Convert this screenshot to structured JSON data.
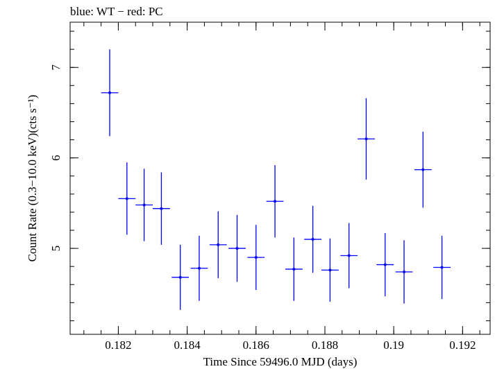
{
  "chart_data": {
    "type": "scatter",
    "title": "blue: WT − red: PC",
    "xlabel": "Time Since 59496.0 MJD (days)",
    "ylabel": "Count Rate (0.3−10.0 keV)(cts s⁻¹)",
    "xlim": [
      0.1806,
      0.1928
    ],
    "ylim": [
      4.05,
      7.5
    ],
    "x_ticks": [
      0.182,
      0.184,
      0.186,
      0.188,
      0.19,
      0.192
    ],
    "x_tick_labels": [
      "0.182",
      "0.184",
      "0.186",
      "0.188",
      "0.19",
      "0.192"
    ],
    "x_minor_step": 0.0005,
    "y_ticks": [
      5,
      6,
      7
    ],
    "y_tick_labels": [
      "5",
      "6",
      "7"
    ],
    "y_minor_step": 0.2,
    "grid": false,
    "series": [
      {
        "color": "#0000ff",
        "points": [
          {
            "x": 0.18175,
            "xerr": 0.00025,
            "y": 6.72,
            "yerr": 0.48
          },
          {
            "x": 0.18225,
            "xerr": 0.00025,
            "y": 5.55,
            "yerr": 0.4
          },
          {
            "x": 0.18275,
            "xerr": 0.00025,
            "y": 5.48,
            "yerr": 0.4
          },
          {
            "x": 0.18325,
            "xerr": 0.00025,
            "y": 5.44,
            "yerr": 0.4
          },
          {
            "x": 0.1838,
            "xerr": 0.00025,
            "y": 4.68,
            "yerr": 0.36
          },
          {
            "x": 0.18435,
            "xerr": 0.00025,
            "y": 4.78,
            "yerr": 0.36
          },
          {
            "x": 0.1849,
            "xerr": 0.00025,
            "y": 5.04,
            "yerr": 0.37
          },
          {
            "x": 0.18545,
            "xerr": 0.00025,
            "y": 5.0,
            "yerr": 0.37
          },
          {
            "x": 0.186,
            "xerr": 0.00025,
            "y": 4.9,
            "yerr": 0.36
          },
          {
            "x": 0.18655,
            "xerr": 0.00025,
            "y": 5.52,
            "yerr": 0.4
          },
          {
            "x": 0.1871,
            "xerr": 0.00025,
            "y": 4.77,
            "yerr": 0.35
          },
          {
            "x": 0.18765,
            "xerr": 0.00025,
            "y": 5.1,
            "yerr": 0.37
          },
          {
            "x": 0.18815,
            "xerr": 0.00025,
            "y": 4.76,
            "yerr": 0.35
          },
          {
            "x": 0.1887,
            "xerr": 0.00025,
            "y": 4.92,
            "yerr": 0.36
          },
          {
            "x": 0.1892,
            "xerr": 0.00025,
            "y": 6.21,
            "yerr": 0.45
          },
          {
            "x": 0.18975,
            "xerr": 0.00025,
            "y": 4.82,
            "yerr": 0.35
          },
          {
            "x": 0.1903,
            "xerr": 0.00025,
            "y": 4.74,
            "yerr": 0.35
          },
          {
            "x": 0.19085,
            "xerr": 0.00025,
            "y": 5.87,
            "yerr": 0.42
          },
          {
            "x": 0.1914,
            "xerr": 0.00025,
            "y": 4.79,
            "yerr": 0.35
          }
        ]
      }
    ]
  }
}
